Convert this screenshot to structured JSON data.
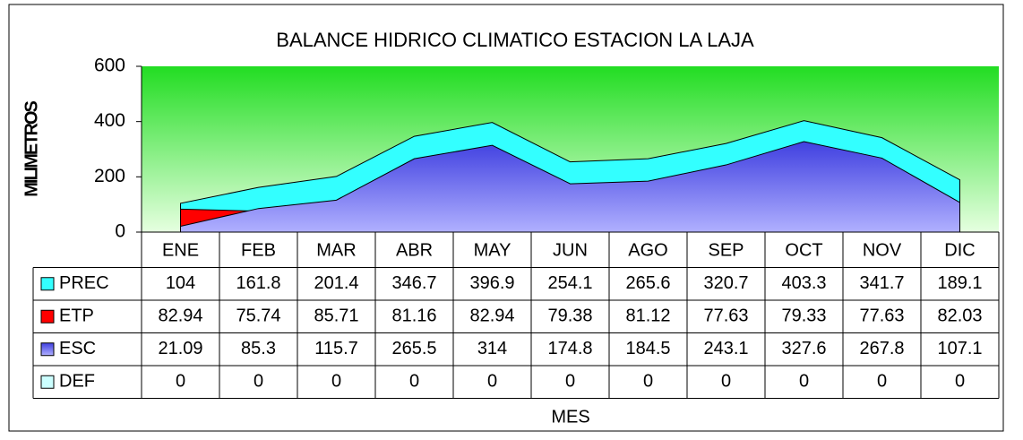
{
  "chart_data": {
    "type": "area",
    "title": "BALANCE HIDRICO CLIMATICO ESTACION LA LAJA",
    "x_label": "MES",
    "y_label": "MILIMETROS",
    "categories": [
      "ENE",
      "FEB",
      "MAR",
      "ABR",
      "MAY",
      "JUN",
      "AGO",
      "SEP",
      "OCT",
      "NOV",
      "DIC"
    ],
    "series": [
      {
        "name": "PREC",
        "color": "#33ffff",
        "values": [
          104,
          161.8,
          201.4,
          346.7,
          396.9,
          254.1,
          265.6,
          320.7,
          403.3,
          341.7,
          189.1
        ]
      },
      {
        "name": "ETP",
        "color": "#ff0000",
        "values": [
          82.94,
          75.74,
          85.71,
          81.16,
          82.94,
          79.38,
          81.12,
          77.63,
          79.33,
          77.63,
          82.03
        ]
      },
      {
        "name": "ESC",
        "color": "#6a6af0",
        "values": [
          21.09,
          85.3,
          115.7,
          265.5,
          314,
          174.8,
          184.5,
          243.1,
          327.6,
          267.8,
          107.1
        ]
      },
      {
        "name": "DEF",
        "color": "#ccffff",
        "values": [
          0,
          0,
          0,
          0,
          0,
          0,
          0,
          0,
          0,
          0,
          0
        ]
      }
    ],
    "ylim": [
      0,
      600
    ],
    "yticks": [
      0,
      200,
      400,
      600
    ],
    "grid": false
  }
}
